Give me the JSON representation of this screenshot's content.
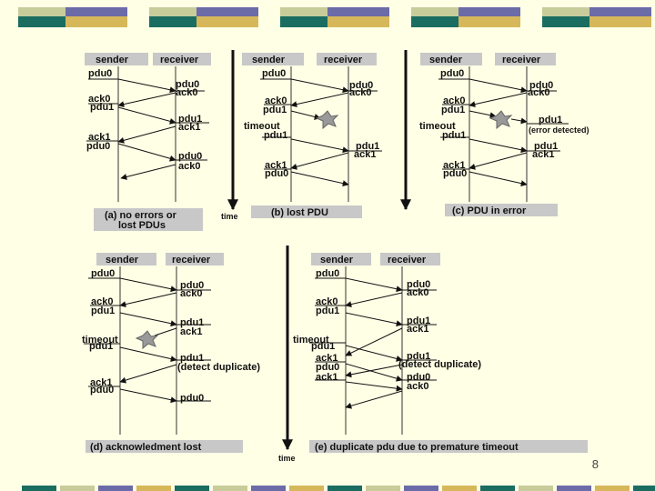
{
  "decor": {
    "colors": [
      "#1a6d60",
      "#c8cc9a",
      "#6b6ba8",
      "#d6b85a"
    ]
  },
  "panels": {
    "a": {
      "header": [
        "sender",
        "receiver"
      ],
      "caption_line1": "(a) no errors or",
      "caption_line2": "lost PDUs",
      "sender_labels": [
        "pdu0",
        "ack0",
        "pdu1",
        "ack1",
        "pdu0"
      ],
      "receiver_labels": [
        "pdu0",
        "ack0",
        "pdu1",
        "ack1",
        "pdu0",
        "ack0"
      ],
      "time_label": "time"
    },
    "b": {
      "header": [
        "sender",
        "receiver"
      ],
      "caption": "(b) lost PDU",
      "sender_labels": [
        "pdu0",
        "ack0",
        "pdu1",
        "timeout",
        "pdu1",
        "ack1",
        "pdu0"
      ],
      "receiver_labels": [
        "pdu0",
        "ack0",
        "pdu1",
        "ack1"
      ]
    },
    "c": {
      "header": [
        "sender",
        "receiver"
      ],
      "caption": "(c) PDU in error",
      "sender_labels": [
        "pdu0",
        "ack0",
        "pdu1",
        "timeout",
        "pdu1",
        "ack1",
        "pdu0"
      ],
      "receiver_labels": [
        "pdu0",
        "ack0",
        "pdu1",
        "(error detected)",
        "pdu1",
        "ack1"
      ]
    },
    "d": {
      "header": [
        "sender",
        "receiver"
      ],
      "caption": "(d) acknowledment  lost",
      "sender_labels": [
        "pdu0",
        "ack0",
        "pdu1",
        "timeout",
        "pdu1",
        "ack1",
        "pdu0"
      ],
      "receiver_labels": [
        "pdu0",
        "ack0",
        "pdu1",
        "ack1",
        "pdu1",
        "(detect duplicate)",
        "pdu0"
      ],
      "time_label": "time"
    },
    "e": {
      "header": [
        "sender",
        "receiver"
      ],
      "caption": "(e) duplicate pdu due to premature timeout",
      "sender_labels": [
        "pdu0",
        "ack0",
        "pdu1",
        "timeout",
        "pdu1",
        "ack1",
        "pdu0",
        "ack1"
      ],
      "receiver_labels": [
        "pdu0",
        "ack0",
        "pdu1",
        "ack1",
        "pdu1",
        "(detect duplicate)",
        "pdu0",
        "ack0"
      ]
    }
  },
  "page_number": "8"
}
